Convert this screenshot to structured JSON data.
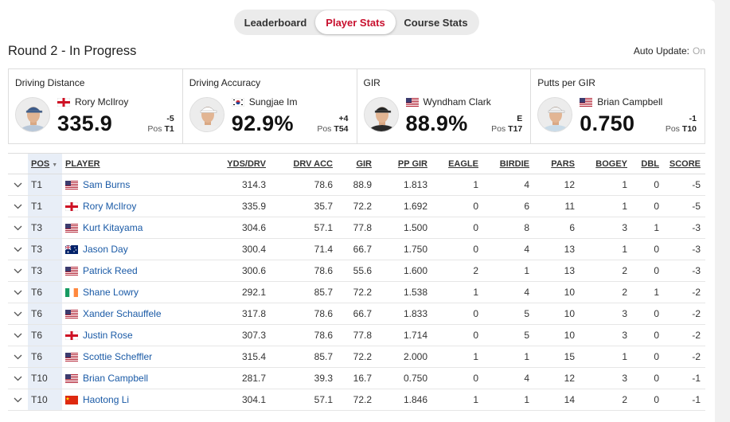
{
  "tabs": [
    {
      "label": "Leaderboard",
      "active": false
    },
    {
      "label": "Player Stats",
      "active": true
    },
    {
      "label": "Course Stats",
      "active": false
    }
  ],
  "round_title": "Round 2 - In Progress",
  "auto_update": {
    "label": "Auto Update:",
    "state": "On"
  },
  "cards": [
    {
      "title": "Driving Distance",
      "player": "Rory McIlroy",
      "flag": "england",
      "value": "335.9",
      "diff": "-5",
      "pos_label": "Pos",
      "pos": "T1"
    },
    {
      "title": "Driving Accuracy",
      "player": "Sungjae Im",
      "flag": "korea",
      "value": "92.9%",
      "diff": "+4",
      "pos_label": "Pos",
      "pos": "T54"
    },
    {
      "title": "GIR",
      "player": "Wyndham Clark",
      "flag": "usa",
      "value": "88.9%",
      "diff": "E",
      "pos_label": "Pos",
      "pos": "T17"
    },
    {
      "title": "Putts per GIR",
      "player": "Brian Campbell",
      "flag": "usa",
      "value": "0.750",
      "diff": "-1",
      "pos_label": "Pos",
      "pos": "T10"
    }
  ],
  "table": {
    "headers": {
      "pos": "POS",
      "player": "PLAYER",
      "yds": "YDS/DRV",
      "acc": "DRV ACC",
      "gir": "GIR",
      "ppgir": "PP GIR",
      "eagle": "EAGLE",
      "birdie": "BIRDIE",
      "pars": "PARS",
      "bogey": "BOGEY",
      "dbl": "DBL",
      "score": "SCORE"
    },
    "rows": [
      {
        "pos": "T1",
        "flag": "usa",
        "player": "Sam Burns",
        "yds": "314.3",
        "acc": "78.6",
        "gir": "88.9",
        "ppgir": "1.813",
        "eagle": "1",
        "birdie": "4",
        "pars": "12",
        "bogey": "1",
        "dbl": "0",
        "score": "-5"
      },
      {
        "pos": "T1",
        "flag": "england",
        "player": "Rory McIlroy",
        "yds": "335.9",
        "acc": "35.7",
        "gir": "72.2",
        "ppgir": "1.692",
        "eagle": "0",
        "birdie": "6",
        "pars": "11",
        "bogey": "1",
        "dbl": "0",
        "score": "-5"
      },
      {
        "pos": "T3",
        "flag": "usa",
        "player": "Kurt Kitayama",
        "yds": "304.6",
        "acc": "57.1",
        "gir": "77.8",
        "ppgir": "1.500",
        "eagle": "0",
        "birdie": "8",
        "pars": "6",
        "bogey": "3",
        "dbl": "1",
        "score": "-3"
      },
      {
        "pos": "T3",
        "flag": "australia",
        "player": "Jason Day",
        "yds": "300.4",
        "acc": "71.4",
        "gir": "66.7",
        "ppgir": "1.750",
        "eagle": "0",
        "birdie": "4",
        "pars": "13",
        "bogey": "1",
        "dbl": "0",
        "score": "-3"
      },
      {
        "pos": "T3",
        "flag": "usa",
        "player": "Patrick Reed",
        "yds": "300.6",
        "acc": "78.6",
        "gir": "55.6",
        "ppgir": "1.600",
        "eagle": "2",
        "birdie": "1",
        "pars": "13",
        "bogey": "2",
        "dbl": "0",
        "score": "-3"
      },
      {
        "pos": "T6",
        "flag": "ireland",
        "player": "Shane Lowry",
        "yds": "292.1",
        "acc": "85.7",
        "gir": "72.2",
        "ppgir": "1.538",
        "eagle": "1",
        "birdie": "4",
        "pars": "10",
        "bogey": "2",
        "dbl": "1",
        "score": "-2"
      },
      {
        "pos": "T6",
        "flag": "usa",
        "player": "Xander Schauffele",
        "yds": "317.8",
        "acc": "78.6",
        "gir": "66.7",
        "ppgir": "1.833",
        "eagle": "0",
        "birdie": "5",
        "pars": "10",
        "bogey": "3",
        "dbl": "0",
        "score": "-2"
      },
      {
        "pos": "T6",
        "flag": "england",
        "player": "Justin Rose",
        "yds": "307.3",
        "acc": "78.6",
        "gir": "77.8",
        "ppgir": "1.714",
        "eagle": "0",
        "birdie": "5",
        "pars": "10",
        "bogey": "3",
        "dbl": "0",
        "score": "-2"
      },
      {
        "pos": "T6",
        "flag": "usa",
        "player": "Scottie Scheffler",
        "yds": "315.4",
        "acc": "85.7",
        "gir": "72.2",
        "ppgir": "2.000",
        "eagle": "1",
        "birdie": "1",
        "pars": "15",
        "bogey": "1",
        "dbl": "0",
        "score": "-2"
      },
      {
        "pos": "T10",
        "flag": "usa",
        "player": "Brian Campbell",
        "yds": "281.7",
        "acc": "39.3",
        "gir": "16.7",
        "ppgir": "0.750",
        "eagle": "0",
        "birdie": "4",
        "pars": "12",
        "bogey": "3",
        "dbl": "0",
        "score": "-1"
      },
      {
        "pos": "T10",
        "flag": "china",
        "player": "Haotong Li",
        "yds": "304.1",
        "acc": "57.1",
        "gir": "72.2",
        "ppgir": "1.846",
        "eagle": "1",
        "birdie": "1",
        "pars": "14",
        "bogey": "2",
        "dbl": "0",
        "score": "-1"
      }
    ]
  },
  "colors": {
    "accent": "#c8102e",
    "link": "#1a5aa6",
    "pos_highlight": "#e8eef7"
  }
}
